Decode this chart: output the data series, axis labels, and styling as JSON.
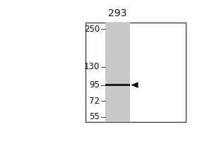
{
  "outer_bg": "#ffffff",
  "lane_label": "293",
  "mw_markers": [
    250,
    130,
    95,
    72,
    55
  ],
  "band_mw": 95,
  "lane_color": "#c8c8c8",
  "band_color": "#1a1a1a",
  "arrow_color": "#111111",
  "marker_font_size": 8.5,
  "label_font_size": 10,
  "fig_width": 3.0,
  "fig_height": 2.0,
  "log_min_mw": 50,
  "log_max_mw": 280,
  "border_color": "#444444",
  "tick_color": "#444444"
}
